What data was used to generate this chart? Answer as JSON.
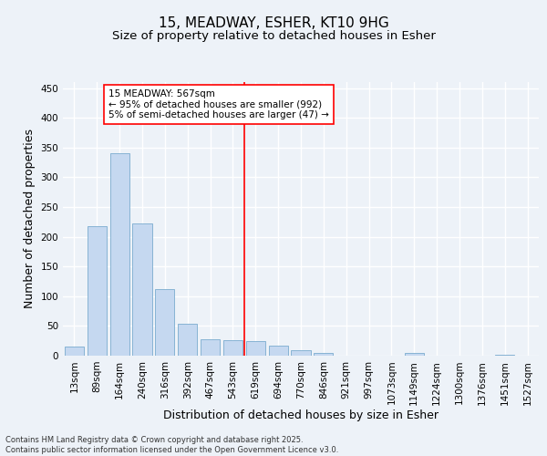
{
  "title1": "15, MEADWAY, ESHER, KT10 9HG",
  "title2": "Size of property relative to detached houses in Esher",
  "xlabel": "Distribution of detached houses by size in Esher",
  "ylabel": "Number of detached properties",
  "categories": [
    "13sqm",
    "89sqm",
    "164sqm",
    "240sqm",
    "316sqm",
    "392sqm",
    "467sqm",
    "543sqm",
    "619sqm",
    "694sqm",
    "770sqm",
    "846sqm",
    "921sqm",
    "997sqm",
    "1073sqm",
    "1149sqm",
    "1224sqm",
    "1300sqm",
    "1376sqm",
    "1451sqm",
    "1527sqm"
  ],
  "values": [
    15,
    217,
    340,
    223,
    112,
    54,
    28,
    26,
    25,
    17,
    9,
    5,
    0,
    0,
    0,
    4,
    0,
    0,
    0,
    2,
    0
  ],
  "bar_color": "#c5d8f0",
  "bar_edge_color": "#7aabce",
  "vline_x": 7.5,
  "vline_color": "red",
  "annotation_text": "15 MEADWAY: 567sqm\n← 95% of detached houses are smaller (992)\n5% of semi-detached houses are larger (47) →",
  "annotation_box_color": "white",
  "annotation_box_edge_color": "red",
  "ylim": [
    0,
    460
  ],
  "yticks": [
    0,
    50,
    100,
    150,
    200,
    250,
    300,
    350,
    400,
    450
  ],
  "background_color": "#edf2f8",
  "grid_color": "white",
  "footer_line1": "Contains HM Land Registry data © Crown copyright and database right 2025.",
  "footer_line2": "Contains public sector information licensed under the Open Government Licence v3.0.",
  "title1_fontsize": 11,
  "title2_fontsize": 9.5,
  "tick_fontsize": 7.5,
  "label_fontsize": 9,
  "footer_fontsize": 6,
  "ann_fontsize": 7.5
}
